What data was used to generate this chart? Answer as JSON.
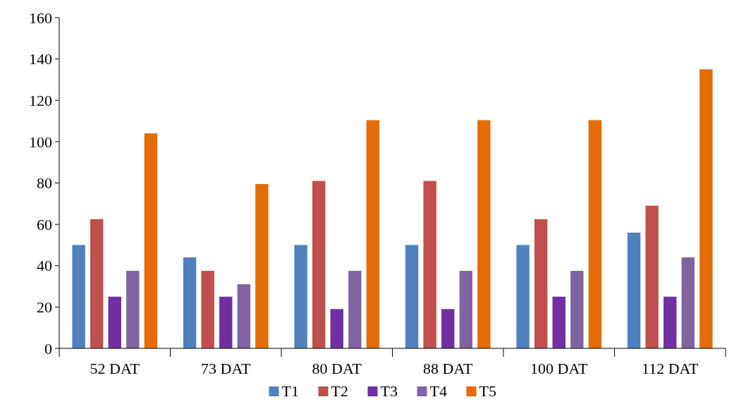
{
  "chart_data": {
    "type": "bar",
    "categories": [
      "52 DAT",
      "73 DAT",
      "80 DAT",
      "88 DAT",
      "100 DAT",
      "112 DAT"
    ],
    "series": [
      {
        "name": "T1",
        "color": "#4f81bd",
        "values": [
          50,
          44,
          50,
          50,
          50,
          56
        ]
      },
      {
        "name": "T2",
        "color": "#c0504d",
        "values": [
          62.5,
          37.5,
          81,
          81,
          62.5,
          69
        ]
      },
      {
        "name": "T3",
        "color": "#7030a0",
        "values": [
          25,
          25,
          19,
          19,
          25,
          25
        ]
      },
      {
        "name": "T4",
        "color": "#8064a2",
        "values": [
          37.5,
          31,
          37.5,
          37.5,
          37.5,
          44
        ]
      },
      {
        "name": "T5",
        "color": "#e36c09",
        "values": [
          104,
          79.5,
          110.4,
          110.4,
          110.4,
          135
        ]
      }
    ],
    "ylim": [
      0,
      160
    ],
    "yticks": [
      0,
      20,
      40,
      60,
      80,
      100,
      120,
      140,
      160
    ],
    "grid": false,
    "legend": "bottom"
  }
}
